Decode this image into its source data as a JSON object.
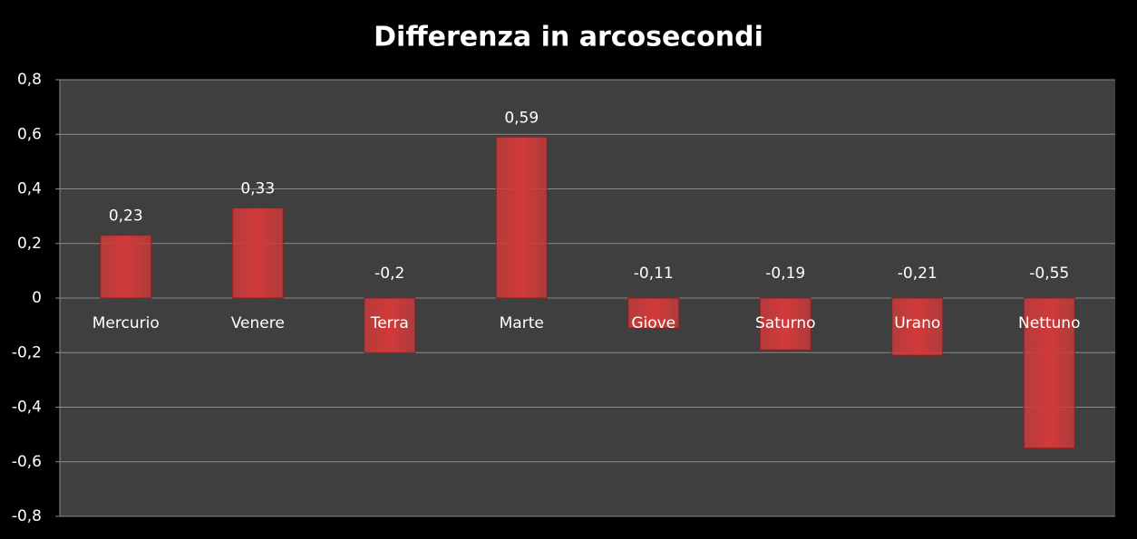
{
  "chart_data": {
    "type": "bar",
    "title": "Differenza in arcosecondi",
    "categories": [
      "Mercurio",
      "Venere",
      "Terra",
      "Marte",
      "Giove",
      "Saturno",
      "Urano",
      "Nettuno"
    ],
    "values": [
      0.23,
      0.33,
      -0.2,
      0.59,
      -0.11,
      -0.19,
      -0.21,
      -0.55
    ],
    "value_labels": [
      "0,23",
      "0,33",
      "-0,2",
      "0,59",
      "-0,11",
      "-0,19",
      "-0,21",
      "-0,55"
    ],
    "color": "#d23a3a",
    "ylim": [
      -0.8,
      0.8
    ],
    "yticks": [
      {
        "value": -0.8,
        "label": "-0,8"
      },
      {
        "value": -0.6,
        "label": "-0,6"
      },
      {
        "value": -0.4,
        "label": "-0,4"
      },
      {
        "value": -0.2,
        "label": "-0,2"
      },
      0,
      {
        "value": 0.2,
        "label": "0,2"
      },
      {
        "value": 0.4,
        "label": "0,4"
      },
      {
        "value": 0.6,
        "label": "0,6"
      },
      {
        "value": 0.8,
        "label": "0,8"
      }
    ],
    "grid": true
  }
}
